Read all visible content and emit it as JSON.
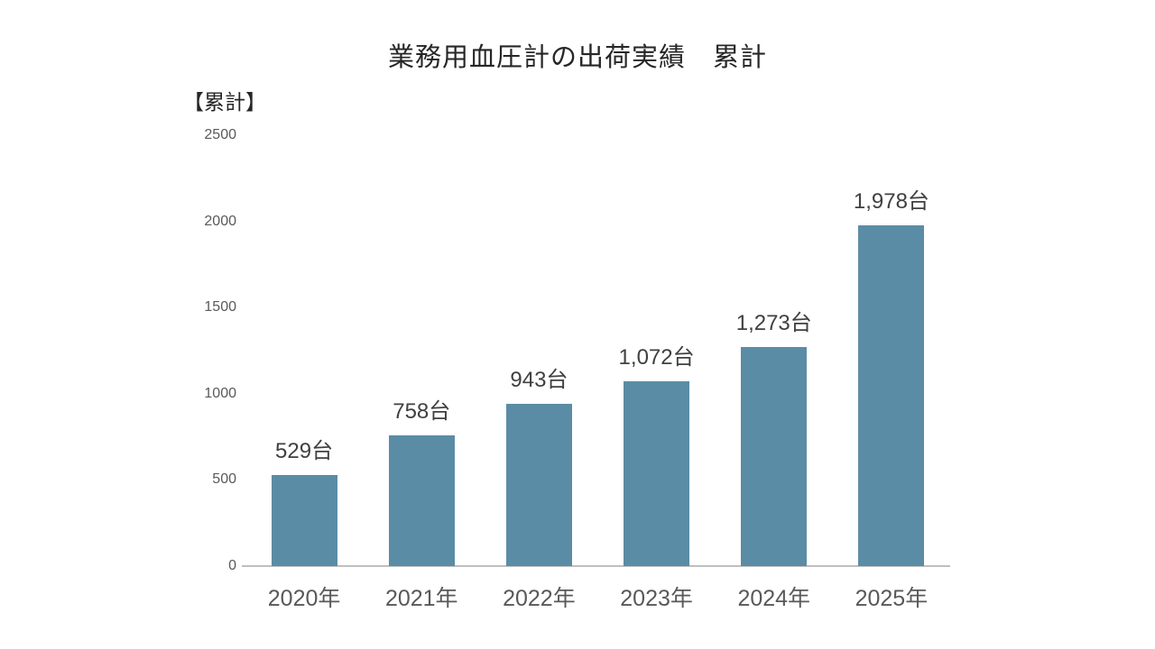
{
  "chart_data": {
    "type": "bar",
    "title": "業務用血圧計の出荷実績　累計",
    "unit_label": "【累計】",
    "categories": [
      "2020年",
      "2021年",
      "2022年",
      "2023年",
      "2024年",
      "2025年"
    ],
    "values": [
      529,
      758,
      943,
      1072,
      1273,
      1978
    ],
    "data_labels": [
      "529台",
      "758台",
      "943台",
      "1,072台",
      "1,273台",
      "1,978台"
    ],
    "y_ticks": [
      0,
      500,
      1000,
      1500,
      2000,
      2500
    ],
    "ylim": [
      0,
      2500
    ],
    "xlabel": "",
    "ylabel": "",
    "grid": false,
    "legend": false,
    "bar_color": "#5B8CA5",
    "title_color": "#262626",
    "data_label_color": "#404040",
    "axis_text_color": "#595959",
    "axis_line_color": "#BFBFBF"
  }
}
